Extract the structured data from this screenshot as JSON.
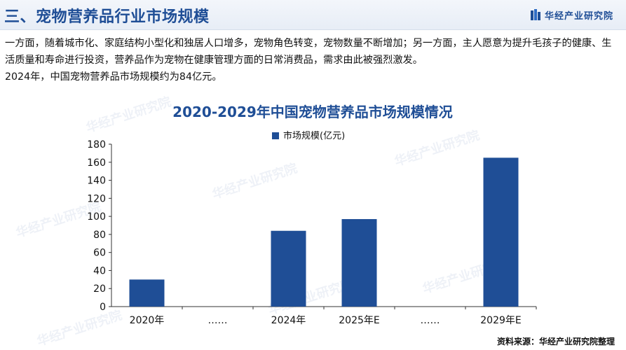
{
  "header": {
    "title": "三、宠物营养品行业市场规模",
    "brand": "华经产业研究院",
    "brand_icon": "brand-logo-icon",
    "accent_color": "#1f4e96"
  },
  "intro": {
    "paragraph1": "一方面，随着城市化、家庭结构小型化和独居人口增多，宠物角色转变，宠物数量不断增加；另一方面，主人愿意为提升毛孩子的健康、生活质量和寿命进行投资，营养品作为宠物在健康管理方面的日常消费品，需求由此被强烈激发。",
    "paragraph2": "2024年，中国宠物营养品市场规模约为84亿元。"
  },
  "watermark_text": "华经产业研究院",
  "chart_data": {
    "type": "bar",
    "title": "2020-2029年中国宠物营养品市场规模情况",
    "categories": [
      "2020年",
      "……",
      "2024年",
      "2025年E",
      "……",
      "2029年E"
    ],
    "series": [
      {
        "name": "市场规模(亿元)",
        "values": [
          30,
          null,
          84,
          97,
          null,
          165
        ],
        "color": "#1f4e96"
      }
    ],
    "ylim": [
      0,
      180
    ],
    "yticks": [
      0,
      20,
      40,
      60,
      80,
      100,
      120,
      140,
      160,
      180
    ],
    "xlabel": "",
    "ylabel": "",
    "grid": false,
    "legend_position": "top"
  },
  "source": "资料来源：华经产业研究院整理"
}
